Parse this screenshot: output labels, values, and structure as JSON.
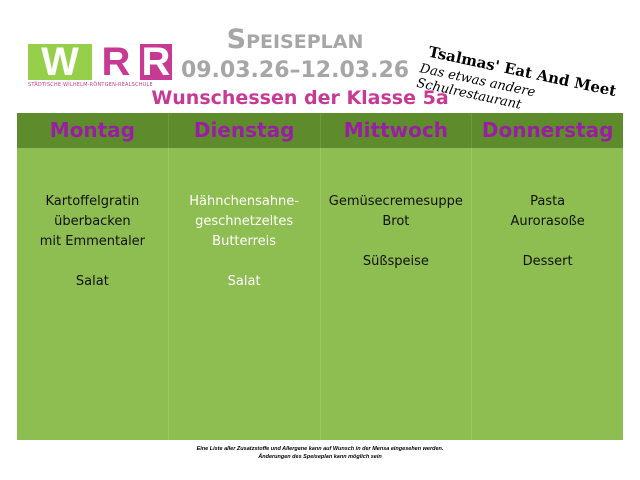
{
  "logo_left": {
    "text": "WRR",
    "subtitle": "STÄDTISCHE WILHELM-RÖNTGEN-REALSCHULE"
  },
  "logo_right": {
    "line1": "Tsalmas' Eat And Meet",
    "line2": "Das etwas andere Schulrestaurant"
  },
  "header": {
    "title": "Speiseplan",
    "dates": "09.03.26–12.03.26",
    "subtitle": "Wunschessen der Klasse 5a"
  },
  "days": [
    {
      "name": "Montag",
      "lines": [
        "Kartoffelgratin",
        "überbacken",
        "mit Emmentaler",
        "",
        "Salat"
      ]
    },
    {
      "name": "Dienstag",
      "lines": [
        "Hähnchensahne-",
        "geschnetzeltes",
        "Butterreis",
        "",
        "Salat"
      ]
    },
    {
      "name": "Mittwoch",
      "lines": [
        "Gemüsecremesuppe",
        "Brot",
        "",
        "Süßspeise"
      ]
    },
    {
      "name": "Donnerstag",
      "lines": [
        "Pasta",
        "Aurorasoße",
        "",
        "Dessert"
      ]
    }
  ],
  "footer": [
    "Eine Liste aller Zusatzstoffe und Allergene kann auf Wunsch in der Mensa eingesehen werden.",
    "Änderungen des Speiseplan kann möglich sein"
  ],
  "colors": {
    "header_green": "#5e8c2c",
    "body_green": "#8ebd52",
    "day_purple": "#9a1ea3",
    "magenta": "#c73a94",
    "gray": "#a6a6a6"
  }
}
